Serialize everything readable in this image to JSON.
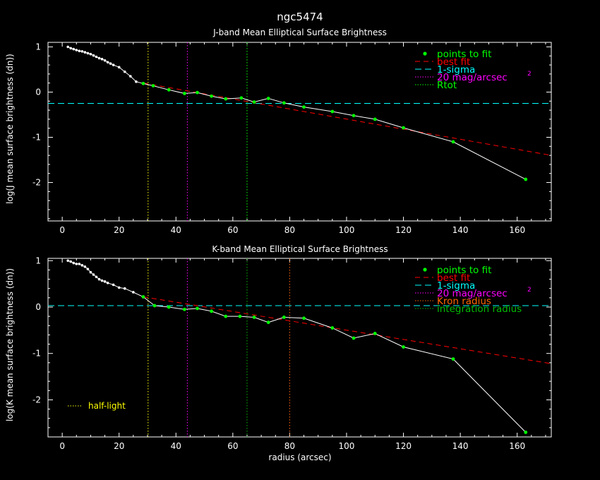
{
  "chart_data": {
    "title": "ngc5474",
    "xlabel": "radius (arcsec)",
    "xlim": [
      -5,
      172
    ],
    "xticks": [
      0,
      20,
      40,
      60,
      80,
      100,
      120,
      140,
      160
    ],
    "colors": {
      "points": "#00ff00",
      "best_fit": "#ff0000",
      "sigma": "#00ffff",
      "mag20": "#ff00ff",
      "rtot": "#00ff00",
      "kron": "#ff6600",
      "integration": "#00bb00",
      "half_light": "#ffff00",
      "profile": "#ffffff"
    },
    "panels": [
      {
        "id": "j",
        "type": "line",
        "subtitle": "J-band Mean Elliptical Surface Brightness",
        "ylabel": "log(J mean surface brightness (dn))",
        "ylim": [
          -2.85,
          1.1
        ],
        "yticks": [
          1,
          0,
          -1,
          -2
        ],
        "profile": [
          [
            2,
            1.0
          ],
          [
            3,
            0.97
          ],
          [
            4,
            0.95
          ],
          [
            5,
            0.93
          ],
          [
            6,
            0.91
          ],
          [
            7,
            0.9
          ],
          [
            8,
            0.88
          ],
          [
            9,
            0.86
          ],
          [
            10,
            0.84
          ],
          [
            11,
            0.81
          ],
          [
            12,
            0.78
          ],
          [
            13,
            0.75
          ],
          [
            14,
            0.73
          ],
          [
            15,
            0.7
          ],
          [
            16,
            0.66
          ],
          [
            17,
            0.63
          ],
          [
            18,
            0.6
          ],
          [
            20,
            0.55
          ],
          [
            22,
            0.45
          ],
          [
            24,
            0.35
          ],
          [
            26,
            0.23
          ],
          [
            28.5,
            0.19
          ],
          [
            32,
            0.14
          ],
          [
            37.5,
            0.05
          ],
          [
            43,
            -0.03
          ],
          [
            47.5,
            -0.01
          ],
          [
            52.5,
            -0.09
          ],
          [
            57.5,
            -0.15
          ],
          [
            63,
            -0.13
          ],
          [
            67.5,
            -0.22
          ],
          [
            72.5,
            -0.14
          ],
          [
            78,
            -0.24
          ],
          [
            85,
            -0.33
          ],
          [
            95,
            -0.43
          ],
          [
            102.5,
            -0.52
          ],
          [
            110,
            -0.6
          ],
          [
            120,
            -0.79
          ],
          [
            137.5,
            -1.1
          ],
          [
            163,
            -1.93
          ]
        ],
        "fit_points_from_index": 21,
        "best_fit_line": {
          "x": [
            28.5,
            172
          ],
          "y": [
            0.2,
            -1.4
          ]
        },
        "sigma": -0.25,
        "vlines": [
          {
            "x": 30.2,
            "kind": "half_light"
          },
          {
            "x": 44,
            "kind": "mag20"
          },
          {
            "x": 65,
            "kind": "rtot"
          }
        ],
        "legend": [
          {
            "kind": "points",
            "label": "points to fit"
          },
          {
            "kind": "best_fit",
            "label": "best fit"
          },
          {
            "kind": "sigma",
            "label": "1-sigma"
          },
          {
            "kind": "mag20",
            "label": "20 mag/arcsec",
            "sup": "2"
          },
          {
            "kind": "rtot",
            "label": "Rtot"
          }
        ]
      },
      {
        "id": "k",
        "type": "line",
        "subtitle": "K-band Mean Elliptical Surface Brightness",
        "ylabel": "log(K mean surface brightness (dn))",
        "ylim": [
          -2.8,
          1.05
        ],
        "yticks": [
          1,
          0,
          -1,
          -2
        ],
        "profile": [
          [
            2,
            1.0
          ],
          [
            3,
            0.98
          ],
          [
            4,
            0.95
          ],
          [
            5,
            0.93
          ],
          [
            6,
            0.93
          ],
          [
            7,
            0.9
          ],
          [
            8,
            0.87
          ],
          [
            9,
            0.82
          ],
          [
            10,
            0.75
          ],
          [
            11,
            0.7
          ],
          [
            12,
            0.65
          ],
          [
            13,
            0.6
          ],
          [
            14,
            0.57
          ],
          [
            15,
            0.55
          ],
          [
            16,
            0.52
          ],
          [
            18,
            0.48
          ],
          [
            20,
            0.42
          ],
          [
            22,
            0.4
          ],
          [
            25,
            0.32
          ],
          [
            28.5,
            0.22
          ],
          [
            32.5,
            0.03
          ],
          [
            37.5,
            0.0
          ],
          [
            43,
            -0.05
          ],
          [
            47.5,
            -0.03
          ],
          [
            52.5,
            -0.09
          ],
          [
            57.5,
            -0.2
          ],
          [
            62.5,
            -0.2
          ],
          [
            67.5,
            -0.22
          ],
          [
            72.5,
            -0.33
          ],
          [
            78,
            -0.22
          ],
          [
            85,
            -0.24
          ],
          [
            95,
            -0.45
          ],
          [
            102.5,
            -0.67
          ],
          [
            110,
            -0.57
          ],
          [
            120,
            -0.86
          ],
          [
            137.5,
            -1.12
          ],
          [
            163,
            -2.7
          ]
        ],
        "fit_points_from_index": 19,
        "best_fit_line": {
          "x": [
            28.5,
            172
          ],
          "y": [
            0.22,
            -1.22
          ]
        },
        "sigma": 0.03,
        "vlines": [
          {
            "x": 30.2,
            "kind": "half_light"
          },
          {
            "x": 44,
            "kind": "mag20"
          },
          {
            "x": 65,
            "kind": "integration"
          },
          {
            "x": 80,
            "kind": "kron"
          }
        ],
        "legend": [
          {
            "kind": "points",
            "label": "points to fit"
          },
          {
            "kind": "best_fit",
            "label": "best fit"
          },
          {
            "kind": "sigma",
            "label": "1-sigma"
          },
          {
            "kind": "mag20",
            "label": "20 mag/arcsec",
            "sup": "2"
          },
          {
            "kind": "kron",
            "label": "Kron radius"
          },
          {
            "kind": "integration",
            "label": "integration radius"
          }
        ],
        "half_light_label": "half-light"
      }
    ]
  }
}
